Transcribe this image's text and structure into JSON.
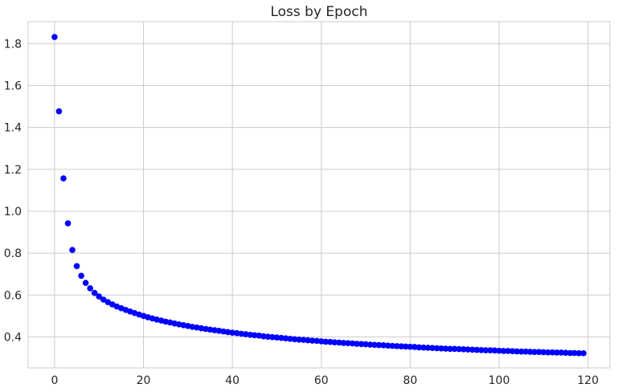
{
  "chart_data": {
    "type": "scatter",
    "title": "Loss by Epoch",
    "xlabel": "",
    "ylabel": "",
    "xlim": [
      -5.95,
      124.95
    ],
    "ylim": [
      0.252,
      1.905
    ],
    "x_ticks": [
      0,
      20,
      40,
      60,
      80,
      100,
      120
    ],
    "y_ticks": [
      0.4,
      0.6,
      0.8,
      1.0,
      1.2,
      1.4,
      1.6,
      1.8
    ],
    "y_tick_labels": [
      "0.4",
      "0.6",
      "0.8",
      "1.0",
      "1.2",
      "1.4",
      "1.6",
      "1.8"
    ],
    "grid": true,
    "marker_color": "#0000ff",
    "series": [
      {
        "x": [
          0,
          1,
          2,
          3,
          4,
          5,
          6,
          7,
          8,
          9,
          10,
          11,
          12,
          13,
          14,
          15,
          16,
          17,
          18,
          19,
          20,
          21,
          22,
          23,
          24,
          25,
          26,
          27,
          28,
          29,
          30,
          31,
          32,
          33,
          34,
          35,
          36,
          37,
          38,
          39,
          40,
          41,
          42,
          43,
          44,
          45,
          46,
          47,
          48,
          49,
          50,
          51,
          52,
          53,
          54,
          55,
          56,
          57,
          58,
          59,
          60,
          61,
          62,
          63,
          64,
          65,
          66,
          67,
          68,
          69,
          70,
          71,
          72,
          73,
          74,
          75,
          76,
          77,
          78,
          79,
          80,
          81,
          82,
          83,
          84,
          85,
          86,
          87,
          88,
          89,
          90,
          91,
          92,
          93,
          94,
          95,
          96,
          97,
          98,
          99,
          100,
          101,
          102,
          103,
          104,
          105,
          106,
          107,
          108,
          109,
          110,
          111,
          112,
          113,
          114,
          115,
          116,
          117,
          118,
          119
        ],
        "y": [
          1.832,
          1.477,
          1.157,
          0.942,
          0.815,
          0.738,
          0.692,
          0.658,
          0.632,
          0.61,
          0.593,
          0.578,
          0.566,
          0.555,
          0.545,
          0.537,
          0.529,
          0.521,
          0.514,
          0.507,
          0.5,
          0.494,
          0.488,
          0.483,
          0.478,
          0.473,
          0.469,
          0.464,
          0.46,
          0.456,
          0.452,
          0.448,
          0.445,
          0.441,
          0.438,
          0.435,
          0.432,
          0.429,
          0.426,
          0.423,
          0.42,
          0.418,
          0.415,
          0.413,
          0.41,
          0.408,
          0.406,
          0.403,
          0.401,
          0.399,
          0.397,
          0.395,
          0.393,
          0.391,
          0.389,
          0.387,
          0.386,
          0.384,
          0.382,
          0.381,
          0.379,
          0.377,
          0.376,
          0.374,
          0.373,
          0.371,
          0.37,
          0.369,
          0.367,
          0.366,
          0.365,
          0.363,
          0.362,
          0.361,
          0.36,
          0.358,
          0.357,
          0.356,
          0.355,
          0.354,
          0.353,
          0.352,
          0.35,
          0.349,
          0.348,
          0.347,
          0.346,
          0.345,
          0.344,
          0.343,
          0.343,
          0.342,
          0.341,
          0.34,
          0.339,
          0.338,
          0.337,
          0.336,
          0.336,
          0.335,
          0.334,
          0.333,
          0.333,
          0.332,
          0.331,
          0.33,
          0.33,
          0.329,
          0.328,
          0.328,
          0.327,
          0.326,
          0.326,
          0.325,
          0.325,
          0.324,
          0.323,
          0.323,
          0.322,
          0.322
        ]
      }
    ]
  }
}
